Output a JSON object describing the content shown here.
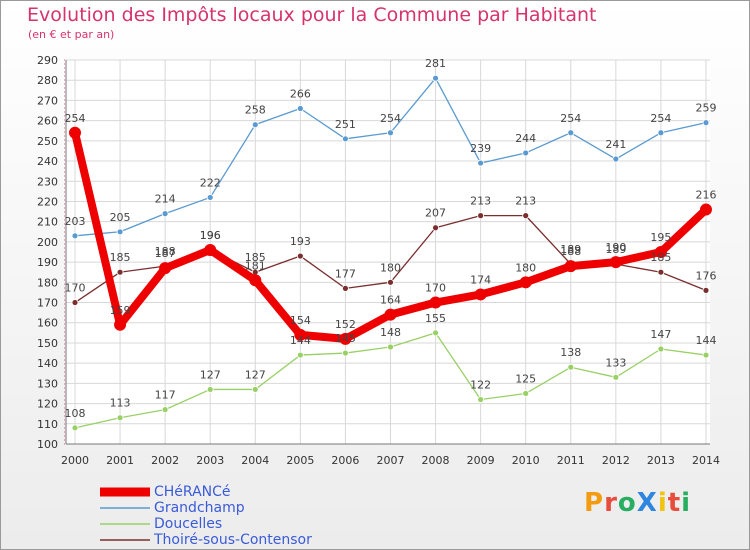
{
  "chart_data": {
    "type": "line",
    "title": "Evolution des Impôts locaux pour la Commune par Habitant",
    "subtitle": "(en € et par an)",
    "categories": [
      "2000",
      "2001",
      "2002",
      "2003",
      "2004",
      "2005",
      "2006",
      "2007",
      "2008",
      "2009",
      "2010",
      "2011",
      "2012",
      "2013",
      "2014"
    ],
    "ylim": [
      100,
      290
    ],
    "yticks": [
      100,
      110,
      120,
      130,
      140,
      150,
      160,
      170,
      180,
      190,
      200,
      210,
      220,
      230,
      240,
      250,
      260,
      270,
      280,
      290
    ],
    "grid": true,
    "series": [
      {
        "name": "CHéRANCé",
        "color": "#ee0000",
        "values": [
          254,
          159,
          187,
          196,
          181,
          154,
          152,
          164,
          170,
          174,
          180,
          188,
          190,
          195,
          216
        ]
      },
      {
        "name": "Grandchamp",
        "color": "#5a9ad0",
        "values": [
          203,
          205,
          214,
          222,
          258,
          266,
          251,
          254,
          281,
          239,
          244,
          254,
          241,
          254,
          259
        ]
      },
      {
        "name": "Doucelles",
        "color": "#99d066",
        "values": [
          108,
          113,
          117,
          127,
          127,
          144,
          145,
          148,
          155,
          122,
          125,
          138,
          133,
          147,
          144
        ]
      },
      {
        "name": "Thoiré-sous-Contensor",
        "color": "#7a2e2e",
        "values": [
          170,
          185,
          188,
          196,
          185,
          193,
          177,
          180,
          207,
          213,
          213,
          189,
          189,
          185,
          176
        ]
      }
    ],
    "data_labels": [
      [
        "254",
        "159",
        "187",
        "196",
        "181",
        "154",
        "152",
        "164",
        "170",
        "174",
        "180",
        "188",
        "190",
        "195",
        "216"
      ],
      [
        "203",
        "205",
        "214",
        "222",
        "258",
        "266",
        "251",
        "254",
        "281",
        "239",
        "244",
        "254",
        "241",
        "254",
        "259"
      ],
      [
        "108",
        "113",
        "117",
        "127",
        "127",
        "144",
        "145",
        "148",
        "155",
        "122",
        "125",
        "138",
        "133",
        "147",
        "144"
      ],
      [
        "170",
        "185",
        "188",
        "196",
        "185",
        "193",
        "177",
        "180",
        "207",
        "213",
        "213",
        "189",
        "189",
        "185",
        "176"
      ]
    ]
  },
  "logo": {
    "text": "ProXiti",
    "letters": [
      "P",
      "r",
      "o",
      "X",
      "i",
      "t",
      "i"
    ],
    "colors": [
      "#f39c12",
      "#e74c3c",
      "#27ae60",
      "#2e86de",
      "#f1c40f",
      "#e74c3c",
      "#27ae60"
    ]
  }
}
